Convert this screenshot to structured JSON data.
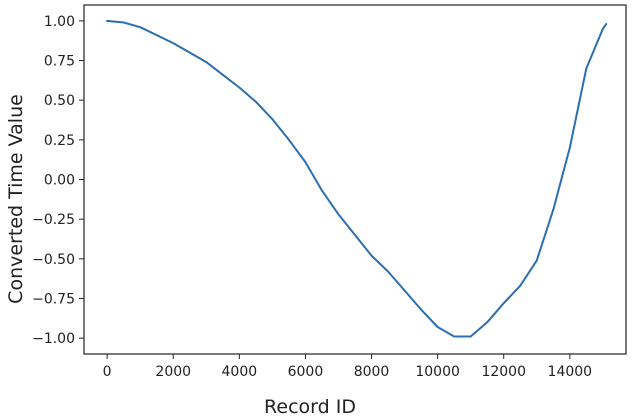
{
  "chart_data": {
    "type": "line",
    "title": "",
    "xlabel": "Record ID",
    "ylabel": "Converted Time Value",
    "xlim": [
      -700,
      15700
    ],
    "ylim": [
      -1.1,
      1.1
    ],
    "grid": false,
    "legend": "none",
    "x_ticks": [
      0,
      2000,
      4000,
      6000,
      8000,
      10000,
      12000,
      14000
    ],
    "x_tick_labels": [
      "0",
      "2000",
      "4000",
      "6000",
      "8000",
      "10000",
      "12000",
      "14000"
    ],
    "y_ticks": [
      1.0,
      0.75,
      0.5,
      0.25,
      0.0,
      -0.25,
      -0.5,
      -0.75,
      -1.0
    ],
    "y_tick_labels": [
      "1.00",
      "0.75",
      "0.50",
      "0.25",
      "0.00",
      "−0.25",
      "−0.50",
      "−0.75",
      "−1.00"
    ],
    "line_color": "#2b6fae",
    "series": [
      {
        "x": [
          0,
          500,
          1000,
          1500,
          2000,
          2500,
          3000,
          3500,
          4000,
          4500,
          5000,
          5500,
          6000,
          6500,
          7000,
          7500,
          8000,
          8500,
          9000,
          9500,
          10000,
          10500,
          11000,
          11500,
          12000,
          12500,
          13000,
          13500,
          14000,
          14500,
          15000,
          15100
        ],
        "y": [
          1.0,
          0.99,
          0.96,
          0.91,
          0.86,
          0.8,
          0.74,
          0.66,
          0.58,
          0.49,
          0.38,
          0.25,
          0.11,
          -0.07,
          -0.22,
          -0.35,
          -0.48,
          -0.58,
          -0.7,
          -0.82,
          -0.93,
          -0.99,
          -0.99,
          -0.9,
          -0.78,
          -0.67,
          -0.51,
          -0.19,
          0.2,
          0.7,
          0.95,
          0.98
        ]
      }
    ]
  }
}
